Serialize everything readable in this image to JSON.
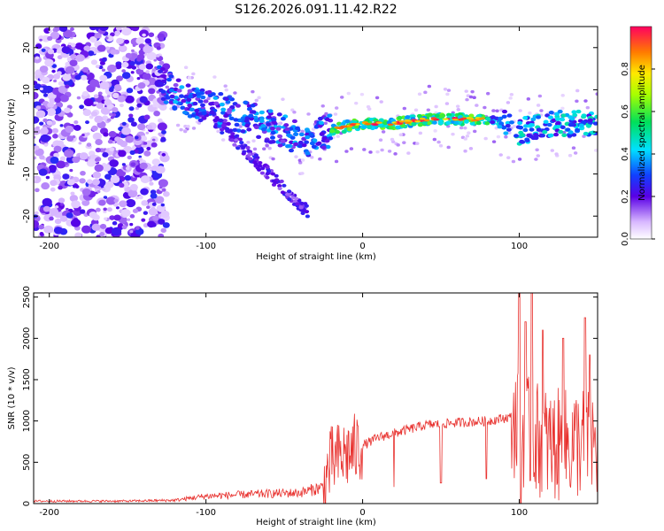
{
  "title": "S126.2026.091.11.42.R22",
  "colors": {
    "snr_line": "#e8322f",
    "axis": "#000000"
  },
  "chart_data": [
    {
      "type": "heatmap",
      "name": "spectrogram",
      "xlabel": "Height of straight line (km)",
      "ylabel": "Frequency (Hz)",
      "xlim": [
        -210,
        150
      ],
      "ylim": [
        -25,
        25
      ],
      "xticks": [
        "-200",
        "-100",
        "0",
        "100"
      ],
      "xtick_values": [
        -200,
        -100,
        0,
        100
      ],
      "yticks": [
        "-20",
        "-10",
        "0",
        "10",
        "20"
      ],
      "ytick_values": [
        -20,
        -10,
        0,
        10,
        20
      ],
      "colorbar": {
        "label": "Normalized spectral amplitude",
        "range": [
          0.0,
          1.0
        ],
        "ticks": [
          "0.0",
          "0.2",
          "0.4",
          "0.6",
          "0.8"
        ],
        "tick_values": [
          0.0,
          0.2,
          0.4,
          0.6,
          0.8
        ]
      },
      "ridge": {
        "description_points_x": [
          -130,
          -110,
          -90,
          -70,
          -50,
          -35,
          -25,
          -15,
          0,
          20,
          40,
          60,
          80,
          90,
          100,
          120,
          140,
          150
        ],
        "description_points_y": [
          12,
          7,
          5,
          3,
          0,
          -3,
          0,
          1,
          2,
          2,
          3,
          3,
          3,
          2,
          0,
          2,
          2,
          2
        ],
        "peak_amplitude_x_range": [
          -20,
          80
        ]
      }
    },
    {
      "type": "line",
      "name": "snr",
      "xlabel": "Height of straight line (km)",
      "ylabel": "SNR (10 * v/v)",
      "xlim": [
        -210,
        150
      ],
      "ylim": [
        0,
        2550
      ],
      "xticks": [
        "-200",
        "-100",
        "0",
        "100"
      ],
      "xtick_values": [
        -200,
        -100,
        0,
        100
      ],
      "yticks": [
        "0",
        "500",
        "1000",
        "1500",
        "2000",
        "2500"
      ],
      "ytick_values": [
        0,
        500,
        1000,
        1500,
        2000,
        2500
      ],
      "envelope_x": [
        -210,
        -150,
        -120,
        -100,
        -60,
        -40,
        -25,
        -20,
        -15,
        -10,
        0,
        10,
        20,
        40,
        60,
        80,
        95,
        100,
        110,
        120,
        130,
        140,
        150
      ],
      "envelope_y": [
        30,
        30,
        40,
        90,
        120,
        130,
        200,
        500,
        550,
        600,
        700,
        800,
        850,
        950,
        980,
        1000,
        1050,
        900,
        800,
        700,
        700,
        750,
        700
      ],
      "spikes_x": [
        100,
        104,
        108,
        115,
        128,
        142,
        145
      ],
      "spikes_y": [
        2550,
        2200,
        2550,
        2100,
        2000,
        2250,
        1800
      ],
      "dips_x": [
        20,
        50,
        79,
        101
      ],
      "dips_y": [
        200,
        250,
        300,
        0
      ]
    }
  ]
}
